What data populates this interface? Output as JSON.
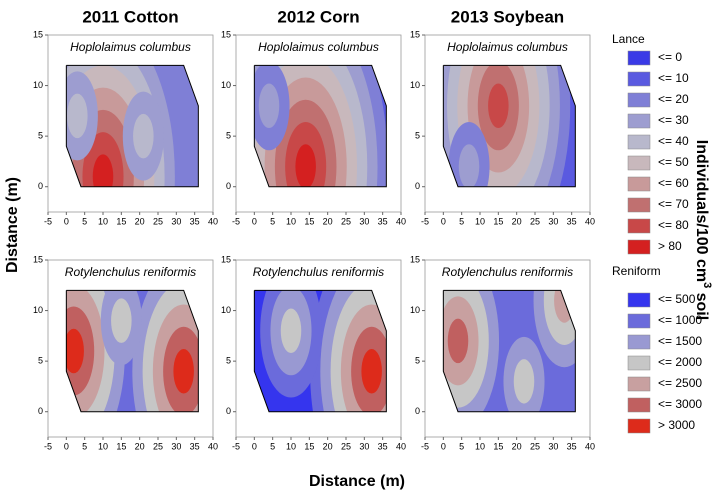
{
  "axis_labels": {
    "x": "Distance (m)",
    "y": "Distance (m)",
    "y2": {
      "text": "Individuals/100 cm",
      "sup": "3",
      "after": " soil"
    }
  },
  "legends": [
    {
      "title": "Lance",
      "items": [
        {
          "label": "<= 0",
          "color": "#3a3ae6"
        },
        {
          "label": "<= 10",
          "color": "#5a5ae0"
        },
        {
          "label": "<= 20",
          "color": "#7f7fd6"
        },
        {
          "label": "<= 30",
          "color": "#9d9dd0"
        },
        {
          "label": "<= 40",
          "color": "#b8b8cc"
        },
        {
          "label": "<= 50",
          "color": "#c8b8bc"
        },
        {
          "label": "<= 60",
          "color": "#c89a9a"
        },
        {
          "label": "<= 70",
          "color": "#c07070"
        },
        {
          "label": "<= 80",
          "color": "#c84848"
        },
        {
          "label": "> 80",
          "color": "#d42020"
        }
      ]
    },
    {
      "title": "Reniform",
      "items": [
        {
          "label": "<= 500",
          "color": "#3535ee"
        },
        {
          "label": "<= 1000",
          "color": "#6b6bdb"
        },
        {
          "label": "<= 1500",
          "color": "#9999d2"
        },
        {
          "label": "<= 2000",
          "color": "#c6c6c6"
        },
        {
          "label": "<= 2500",
          "color": "#c8a0a0"
        },
        {
          "label": "<= 3000",
          "color": "#c06060"
        },
        {
          "label": "> 3000",
          "color": "#dd2b1b"
        }
      ]
    }
  ],
  "chart_data": [
    {
      "type": "contour",
      "title": "2011 Cotton",
      "subtitle": "Hoplolaimus columbus",
      "legend": "Lance",
      "xlim": [
        -5,
        40
      ],
      "xticks": [
        -5,
        0,
        5,
        10,
        15,
        20,
        25,
        30,
        35,
        40
      ],
      "ylim": [
        -2.5,
        15
      ],
      "yticks": [
        0,
        5,
        10,
        15
      ],
      "field": {
        "x": [
          0,
          0,
          4,
          36,
          36,
          32,
          0
        ],
        "y": [
          12,
          4,
          0,
          0,
          8,
          12,
          12
        ]
      },
      "base": "<= 20",
      "hotspots": [
        {
          "x": 10,
          "y": 1,
          "peak": "> 80"
        },
        {
          "x": 21,
          "y": 5,
          "peak": "<= 40"
        },
        {
          "x": 3,
          "y": 7,
          "peak": "<= 40"
        }
      ]
    },
    {
      "type": "contour",
      "title": "2012 Corn",
      "subtitle": "Hoplolaimus columbus",
      "legend": "Lance",
      "xlim": [
        -5,
        40
      ],
      "xticks": [
        -5,
        0,
        5,
        10,
        15,
        20,
        25,
        30,
        35,
        40
      ],
      "ylim": [
        -2.5,
        15
      ],
      "yticks": [
        0,
        5,
        10,
        15
      ],
      "field": {
        "x": [
          0,
          0,
          4,
          36,
          36,
          32,
          0
        ],
        "y": [
          12,
          4,
          0,
          0,
          8,
          12,
          12
        ]
      },
      "base": "<= 10",
      "hotspots": [
        {
          "x": 14,
          "y": 2,
          "peak": "> 80"
        },
        {
          "x": 4,
          "y": 8,
          "peak": "<= 30"
        }
      ]
    },
    {
      "type": "contour",
      "title": "2013 Soybean",
      "subtitle": "Hoplolaimus columbus",
      "legend": "Lance",
      "xlim": [
        -5,
        40
      ],
      "xticks": [
        -5,
        0,
        5,
        10,
        15,
        20,
        25,
        30,
        35,
        40
      ],
      "ylim": [
        -2.5,
        15
      ],
      "yticks": [
        0,
        5,
        10,
        15
      ],
      "field": {
        "x": [
          0,
          0,
          4,
          36,
          36,
          32,
          0
        ],
        "y": [
          12,
          4,
          0,
          0,
          8,
          12,
          12
        ]
      },
      "base": "<= 10",
      "hotspots": [
        {
          "x": 15,
          "y": 8,
          "peak": "<= 80"
        },
        {
          "x": 7,
          "y": 2,
          "peak": "<= 30"
        }
      ]
    },
    {
      "type": "contour",
      "subtitle": "Rotylenchulus reniformis",
      "legend": "Reniform",
      "xlim": [
        -5,
        40
      ],
      "xticks": [
        -5,
        0,
        5,
        10,
        15,
        20,
        25,
        30,
        35,
        40
      ],
      "ylim": [
        -2.5,
        15
      ],
      "yticks": [
        0,
        5,
        10,
        15
      ],
      "field": {
        "x": [
          0,
          0,
          4,
          36,
          36,
          32,
          0
        ],
        "y": [
          12,
          4,
          0,
          0,
          8,
          12,
          12
        ]
      },
      "base": "<= 1000",
      "hotspots": [
        {
          "x": 2,
          "y": 6,
          "peak": "> 3000"
        },
        {
          "x": 32,
          "y": 4,
          "peak": "> 3000"
        },
        {
          "x": 15,
          "y": 9,
          "peak": "<= 2000"
        }
      ]
    },
    {
      "type": "contour",
      "subtitle": "Rotylenchulus reniformis",
      "legend": "Reniform",
      "xlim": [
        -5,
        40
      ],
      "xticks": [
        -5,
        0,
        5,
        10,
        15,
        20,
        25,
        30,
        35,
        40
      ],
      "ylim": [
        -2.5,
        15
      ],
      "yticks": [
        0,
        5,
        10,
        15
      ],
      "field": {
        "x": [
          0,
          0,
          4,
          36,
          36,
          32,
          0
        ],
        "y": [
          12,
          4,
          0,
          0,
          8,
          12,
          12
        ]
      },
      "base": "<= 500",
      "hotspots": [
        {
          "x": 32,
          "y": 4,
          "peak": "> 3000"
        },
        {
          "x": 10,
          "y": 8,
          "peak": "<= 2000"
        }
      ]
    },
    {
      "type": "contour",
      "subtitle": "Rotylenchulus reniformis",
      "legend": "Reniform",
      "xlim": [
        -5,
        40
      ],
      "xticks": [
        -5,
        0,
        5,
        10,
        15,
        20,
        25,
        30,
        35,
        40
      ],
      "ylim": [
        -2.5,
        15
      ],
      "yticks": [
        0,
        5,
        10,
        15
      ],
      "field": {
        "x": [
          0,
          0,
          4,
          36,
          36,
          32,
          0
        ],
        "y": [
          12,
          4,
          0,
          0,
          8,
          12,
          12
        ]
      },
      "base": "<= 1000",
      "hotspots": [
        {
          "x": 4,
          "y": 7,
          "peak": "<= 3000"
        },
        {
          "x": 33,
          "y": 11,
          "peak": "<= 2500"
        },
        {
          "x": 22,
          "y": 3,
          "peak": "<= 2000"
        }
      ]
    }
  ]
}
